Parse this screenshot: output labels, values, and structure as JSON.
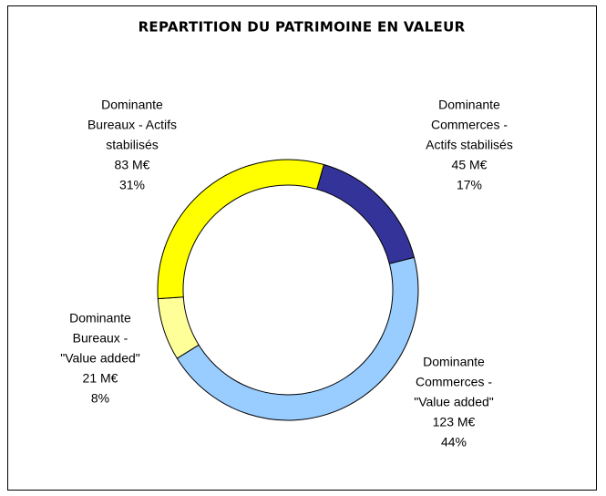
{
  "chart_data": {
    "type": "donut",
    "title": "REPARTITION DU PATRIMOINE EN VALEUR",
    "categories": [
      [
        "Dominante",
        "Commerces -",
        "Actifs stabilisés"
      ],
      [
        "Dominante",
        "Commerces -",
        "\"Value added\""
      ],
      [
        "Dominante",
        "Bureaux -",
        "\"Value added\""
      ],
      [
        "Dominante",
        "Bureaux - Actifs",
        "stabilisés"
      ]
    ],
    "values": [
      45,
      123,
      21,
      83
    ],
    "value_labels": [
      "45 M€",
      "123 M€",
      "21 M€",
      "83 M€"
    ],
    "percents": [
      17,
      44,
      8,
      31
    ],
    "percent_labels": [
      "17%",
      "44%",
      "8%",
      "31%"
    ],
    "colors": [
      "#333399",
      "#99ccff",
      "#ffff99",
      "#ffff00"
    ]
  }
}
